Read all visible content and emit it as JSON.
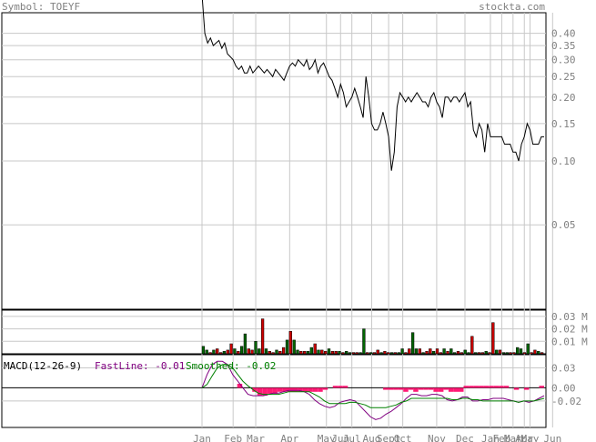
{
  "header": {
    "symbol_label": "Symbol: TOEYF",
    "site": "stockta.com"
  },
  "colors": {
    "grid": "#c8c8c8",
    "price_line": "#000000",
    "vol_up": "#006400",
    "vol_down": "#cc0000",
    "axis_text": "#808080",
    "header_text": "#808080",
    "fast": "#800080",
    "smooth": "#008000",
    "hist": "#ff1a75"
  },
  "chart_data": [
    {
      "type": "line",
      "name": "price",
      "ylim": [
        0.02,
        0.5
      ],
      "log_scale": true,
      "y_ticks": [
        "0.40",
        "0.35",
        "0.30",
        "0.25",
        "0.20",
        "0.15",
        "0.10",
        "0.05"
      ],
      "y_tick_values": [
        0.4,
        0.35,
        0.3,
        0.25,
        0.2,
        0.15,
        0.1,
        0.05
      ],
      "x_ticks": [
        "Jan",
        "Feb",
        "Mar",
        "Apr",
        "May",
        "Jun",
        "Jul",
        "Aug",
        "Sept",
        "Oct",
        "Nov",
        "Dec",
        "Jan",
        "Feb",
        "Mar",
        "Apr",
        "May",
        "Jun"
      ],
      "x_tick_index": [
        0,
        11,
        19,
        31,
        44,
        49,
        53,
        60,
        66,
        71,
        83,
        93,
        102,
        106,
        110,
        114,
        116,
        124
      ],
      "grid": true,
      "values": [
        0.9,
        0.4,
        0.36,
        0.38,
        0.35,
        0.36,
        0.37,
        0.34,
        0.36,
        0.32,
        0.31,
        0.3,
        0.28,
        0.27,
        0.28,
        0.26,
        0.26,
        0.28,
        0.26,
        0.27,
        0.28,
        0.27,
        0.26,
        0.27,
        0.26,
        0.25,
        0.27,
        0.26,
        0.25,
        0.24,
        0.26,
        0.28,
        0.29,
        0.28,
        0.3,
        0.29,
        0.28,
        0.3,
        0.27,
        0.28,
        0.3,
        0.26,
        0.28,
        0.29,
        0.27,
        0.25,
        0.24,
        0.22,
        0.2,
        0.23,
        0.21,
        0.18,
        0.19,
        0.2,
        0.22,
        0.2,
        0.18,
        0.16,
        0.25,
        0.2,
        0.15,
        0.14,
        0.14,
        0.15,
        0.17,
        0.15,
        0.13,
        0.09,
        0.11,
        0.18,
        0.21,
        0.2,
        0.19,
        0.2,
        0.19,
        0.2,
        0.21,
        0.2,
        0.19,
        0.19,
        0.18,
        0.2,
        0.21,
        0.19,
        0.18,
        0.16,
        0.2,
        0.2,
        0.19,
        0.2,
        0.2,
        0.19,
        0.2,
        0.21,
        0.18,
        0.19,
        0.14,
        0.13,
        0.15,
        0.14,
        0.11,
        0.15,
        0.13,
        0.13,
        0.13,
        0.13,
        0.13,
        0.12,
        0.12,
        0.12,
        0.11,
        0.11,
        0.1,
        0.12,
        0.13,
        0.15,
        0.14,
        0.12,
        0.12,
        0.12,
        0.13,
        0.13
      ]
    },
    {
      "type": "bar",
      "name": "volume",
      "ylim": [
        0,
        0.035
      ],
      "y_ticks": [
        "0.03 M",
        "0.02 M",
        "0.01 M"
      ],
      "y_tick_values": [
        0.03,
        0.02,
        0.01
      ],
      "values": [
        0.006,
        0.003,
        0.001,
        0.003,
        0.004,
        0.001,
        0.002,
        0.003,
        0.008,
        0.004,
        0.002,
        0.006,
        0.016,
        0.004,
        0.003,
        0.01,
        0.004,
        0.028,
        0.004,
        0.002,
        0.001,
        0.003,
        0.002,
        0.005,
        0.011,
        0.018,
        0.011,
        0.003,
        0.002,
        0.002,
        0.002,
        0.005,
        0.008,
        0.003,
        0.003,
        0.002,
        0.004,
        0.002,
        0.002,
        0.002,
        0.001,
        0.002,
        0.001,
        0.001,
        0.001,
        0.001,
        0.02,
        0.001,
        0.001,
        0.001,
        0.003,
        0.001,
        0.002,
        0.001,
        0.001,
        0.001,
        0.001,
        0.004,
        0.001,
        0.004,
        0.017,
        0.004,
        0.004,
        0.001,
        0.002,
        0.004,
        0.002,
        0.004,
        0.001,
        0.004,
        0.002,
        0.004,
        0.001,
        0.002,
        0.001,
        0.003,
        0.001,
        0.014,
        0.001,
        0.001,
        0.001,
        0.002,
        0.001,
        0.025,
        0.003,
        0.003,
        0.001,
        0.001,
        0.001,
        0.001,
        0.005,
        0.004,
        0.001,
        0.008,
        0.001,
        0.003,
        0.002,
        0.001
      ],
      "colors_updown": "gdgdgdgdgdrgdrgdrgdrgdrgdrgdrgdrgdrgdrgdrgdrgdrgdrgdrgdrgdrgdrgdrgdrgdrgdrgdrgdrgdrgdrgdrgdrgdrgdrgdrgdrgdrgdrg"
    },
    {
      "type": "line",
      "name": "MACD",
      "title": "MACD(12-26-9)",
      "fast_label": "FastLine: -0.01",
      "smooth_label": "Smoothed: -0.02",
      "ylim": [
        -0.06,
        0.05
      ],
      "y_ticks": [
        "0.03",
        "0.00",
        "-0.02"
      ],
      "y_tick_values": [
        0.03,
        0.0,
        -0.02
      ],
      "fast": [
        0.0,
        0.02,
        0.035,
        0.04,
        0.04,
        0.035,
        0.02,
        0.01,
        0.0,
        -0.01,
        -0.012,
        -0.012,
        -0.012,
        -0.01,
        -0.008,
        -0.008,
        -0.006,
        -0.004,
        -0.004,
        -0.004,
        -0.006,
        -0.01,
        -0.018,
        -0.024,
        -0.028,
        -0.03,
        -0.028,
        -0.022,
        -0.02,
        -0.018,
        -0.02,
        -0.028,
        -0.036,
        -0.044,
        -0.048,
        -0.046,
        -0.04,
        -0.036,
        -0.03,
        -0.024,
        -0.016,
        -0.01,
        -0.01,
        -0.012,
        -0.012,
        -0.01,
        -0.01,
        -0.012,
        -0.018,
        -0.02,
        -0.018,
        -0.014,
        -0.014,
        -0.02,
        -0.02,
        -0.018,
        -0.018,
        -0.016,
        -0.016,
        -0.016,
        -0.018,
        -0.02,
        -0.022,
        -0.02,
        -0.022,
        -0.02,
        -0.016,
        -0.012
      ],
      "smooth": [
        0.0,
        0.005,
        0.018,
        0.03,
        0.035,
        0.035,
        0.03,
        0.02,
        0.01,
        0.003,
        -0.003,
        -0.008,
        -0.01,
        -0.01,
        -0.01,
        -0.01,
        -0.008,
        -0.006,
        -0.006,
        -0.006,
        -0.006,
        -0.006,
        -0.01,
        -0.014,
        -0.02,
        -0.024,
        -0.024,
        -0.024,
        -0.024,
        -0.022,
        -0.022,
        -0.024,
        -0.026,
        -0.03,
        -0.03,
        -0.03,
        -0.03,
        -0.028,
        -0.026,
        -0.022,
        -0.02,
        -0.016,
        -0.016,
        -0.016,
        -0.016,
        -0.016,
        -0.016,
        -0.016,
        -0.016,
        -0.018,
        -0.018,
        -0.016,
        -0.016,
        -0.018,
        -0.018,
        -0.02,
        -0.02,
        -0.02,
        -0.02,
        -0.02,
        -0.02,
        -0.02,
        -0.022,
        -0.02,
        -0.02,
        -0.02,
        -0.018,
        -0.016
      ],
      "hist": [
        0,
        0,
        0,
        0,
        0,
        0,
        0,
        0.006,
        0,
        0,
        -0.006,
        -0.012,
        -0.012,
        -0.009,
        -0.009,
        -0.006,
        -0.006,
        -0.006,
        -0.006,
        -0.006,
        -0.006,
        -0.006,
        -0.006,
        -0.006,
        -0.003,
        0,
        0.003,
        0.003,
        0.003,
        0,
        0,
        0,
        0,
        0,
        0,
        0,
        -0.003,
        -0.003,
        -0.003,
        -0.003,
        -0.006,
        -0.003,
        -0.006,
        -0.003,
        -0.003,
        -0.003,
        -0.006,
        -0.006,
        -0.003,
        -0.006,
        -0.006,
        -0.006,
        0.003,
        0.003,
        0.003,
        0.003,
        0.003,
        0.003,
        0.003,
        0.003,
        0.003,
        0,
        -0.003,
        0,
        -0.003,
        0,
        0,
        0.003
      ]
    }
  ]
}
